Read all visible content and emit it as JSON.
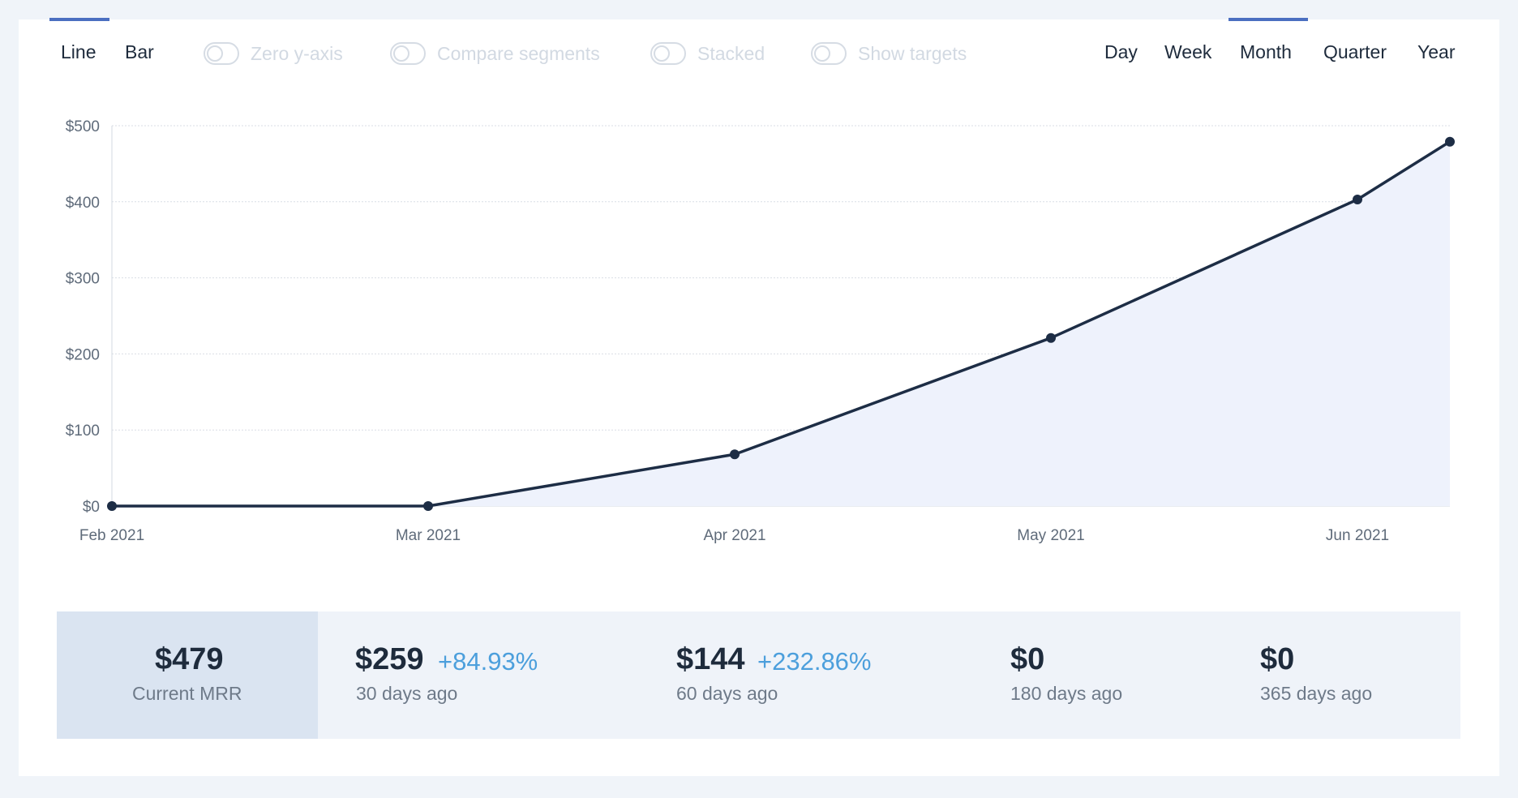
{
  "chart_types": [
    "Line",
    "Bar"
  ],
  "active_chart_type": "Line",
  "toggles": [
    {
      "label": "Zero y-axis",
      "enabled": false
    },
    {
      "label": "Compare segments",
      "enabled": false
    },
    {
      "label": "Stacked",
      "enabled": false
    },
    {
      "label": "Show targets",
      "enabled": false
    }
  ],
  "periods": [
    "Day",
    "Week",
    "Month",
    "Quarter",
    "Year"
  ],
  "active_period": "Month",
  "colors": {
    "line": "#1d2d45",
    "area": "#eef2fc",
    "accent": "#4b6fc1",
    "positive_change": "#4c9fdc"
  },
  "chart_data": {
    "type": "area",
    "x": [
      "Feb 2021",
      "Mar 2021",
      "Apr 2021",
      "May 2021",
      "Jun 2021",
      "Jun 2021 (current)"
    ],
    "x_tick_labels": [
      "Feb 2021",
      "Mar 2021",
      "Apr 2021",
      "May 2021",
      "Jun 2021"
    ],
    "series": [
      {
        "values": [
          0,
          0,
          68,
          221,
          403,
          479
        ]
      }
    ],
    "y_tick_labels": [
      "$0",
      "$100",
      "$200",
      "$300",
      "$400",
      "$500"
    ],
    "ylim": [
      0,
      500
    ],
    "grid": true
  },
  "stats": {
    "current": {
      "value": "$479",
      "label": "Current MRR"
    },
    "d30": {
      "value": "$259",
      "change": "+84.93%",
      "label": "30 days ago"
    },
    "d60": {
      "value": "$144",
      "change": "+232.86%",
      "label": "60 days ago"
    },
    "d180": {
      "value": "$0",
      "label": "180 days ago"
    },
    "d365": {
      "value": "$0",
      "label": "365 days ago"
    }
  }
}
